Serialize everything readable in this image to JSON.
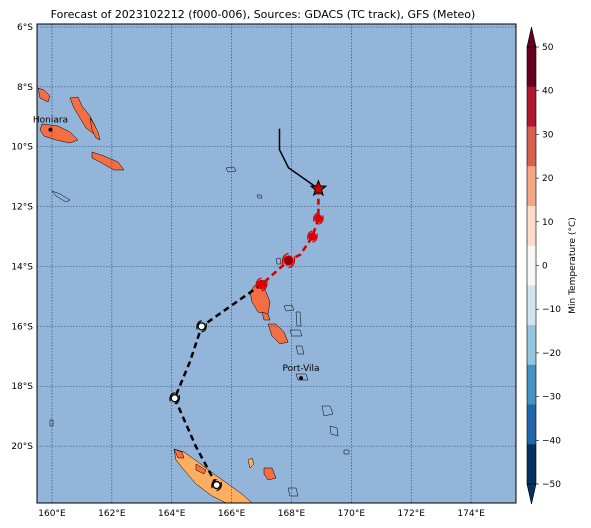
{
  "title": "Forecast of 2023102212 (f000-006), Sources: GDACS (TC track), GFS (Meteo)",
  "lon_ticks": [
    "160°E",
    "162°E",
    "164°E",
    "166°E",
    "168°E",
    "170°E",
    "172°E",
    "174°E"
  ],
  "lat_ticks": [
    "6°S",
    "8°S",
    "10°S",
    "12°S",
    "14°S",
    "16°S",
    "18°S",
    "20°S"
  ],
  "colorbar": {
    "label": "Min Temperature (°C)",
    "ticks": [
      "50",
      "40",
      "30",
      "20",
      "10",
      "0",
      "−10",
      "−20",
      "−30",
      "−40",
      "−50"
    ],
    "colors": [
      "#67001f",
      "#b2182b",
      "#d6604d",
      "#f4a582",
      "#fddbc7",
      "#f7f7f7",
      "#d1e5f0",
      "#92c5de",
      "#4393c3",
      "#2166ac",
      "#053061"
    ]
  },
  "places": [
    {
      "name": "Honiara",
      "lon": 159.95,
      "lat": -9.43
    },
    {
      "name": "Port-Vila",
      "lon": 168.32,
      "lat": -17.73
    }
  ],
  "map_extent": {
    "lon_min": 159.5,
    "lon_max": 175.5,
    "lat_min": -21.9,
    "lat_max": -5.9
  },
  "colors": {
    "ocean": "#92b5d9",
    "land_warm": "#f46d43",
    "land_cool": "#fdae61",
    "grid": "#2c3e6b"
  },
  "track": {
    "observed": [
      [
        167.6,
        -9.4
      ],
      [
        167.6,
        -10.1
      ],
      [
        167.9,
        -10.7
      ],
      [
        168.9,
        -11.4
      ]
    ],
    "forecast_red": [
      [
        168.9,
        -11.4
      ],
      [
        168.9,
        -12.4
      ],
      [
        168.7,
        -13.0
      ],
      [
        168.3,
        -13.6
      ],
      [
        167.9,
        -13.8
      ],
      [
        167.0,
        -14.6
      ]
    ],
    "forecast_black": [
      [
        167.0,
        -14.6
      ],
      [
        166.0,
        -15.3
      ],
      [
        165.0,
        -16.0
      ],
      [
        164.6,
        -17.2
      ],
      [
        164.1,
        -18.4
      ],
      [
        164.8,
        -20.0
      ],
      [
        165.5,
        -21.3
      ]
    ],
    "star": [
      168.9,
      -11.4
    ],
    "red_points": [
      [
        168.9,
        -12.4
      ],
      [
        168.7,
        -13.0
      ]
    ],
    "darkred_points": [
      [
        167.9,
        -13.8
      ]
    ],
    "mid_points": [
      [
        167.0,
        -14.6
      ]
    ],
    "open_points": [
      [
        165.0,
        -16.0
      ],
      [
        164.1,
        -18.4
      ],
      [
        165.5,
        -21.3
      ]
    ]
  }
}
